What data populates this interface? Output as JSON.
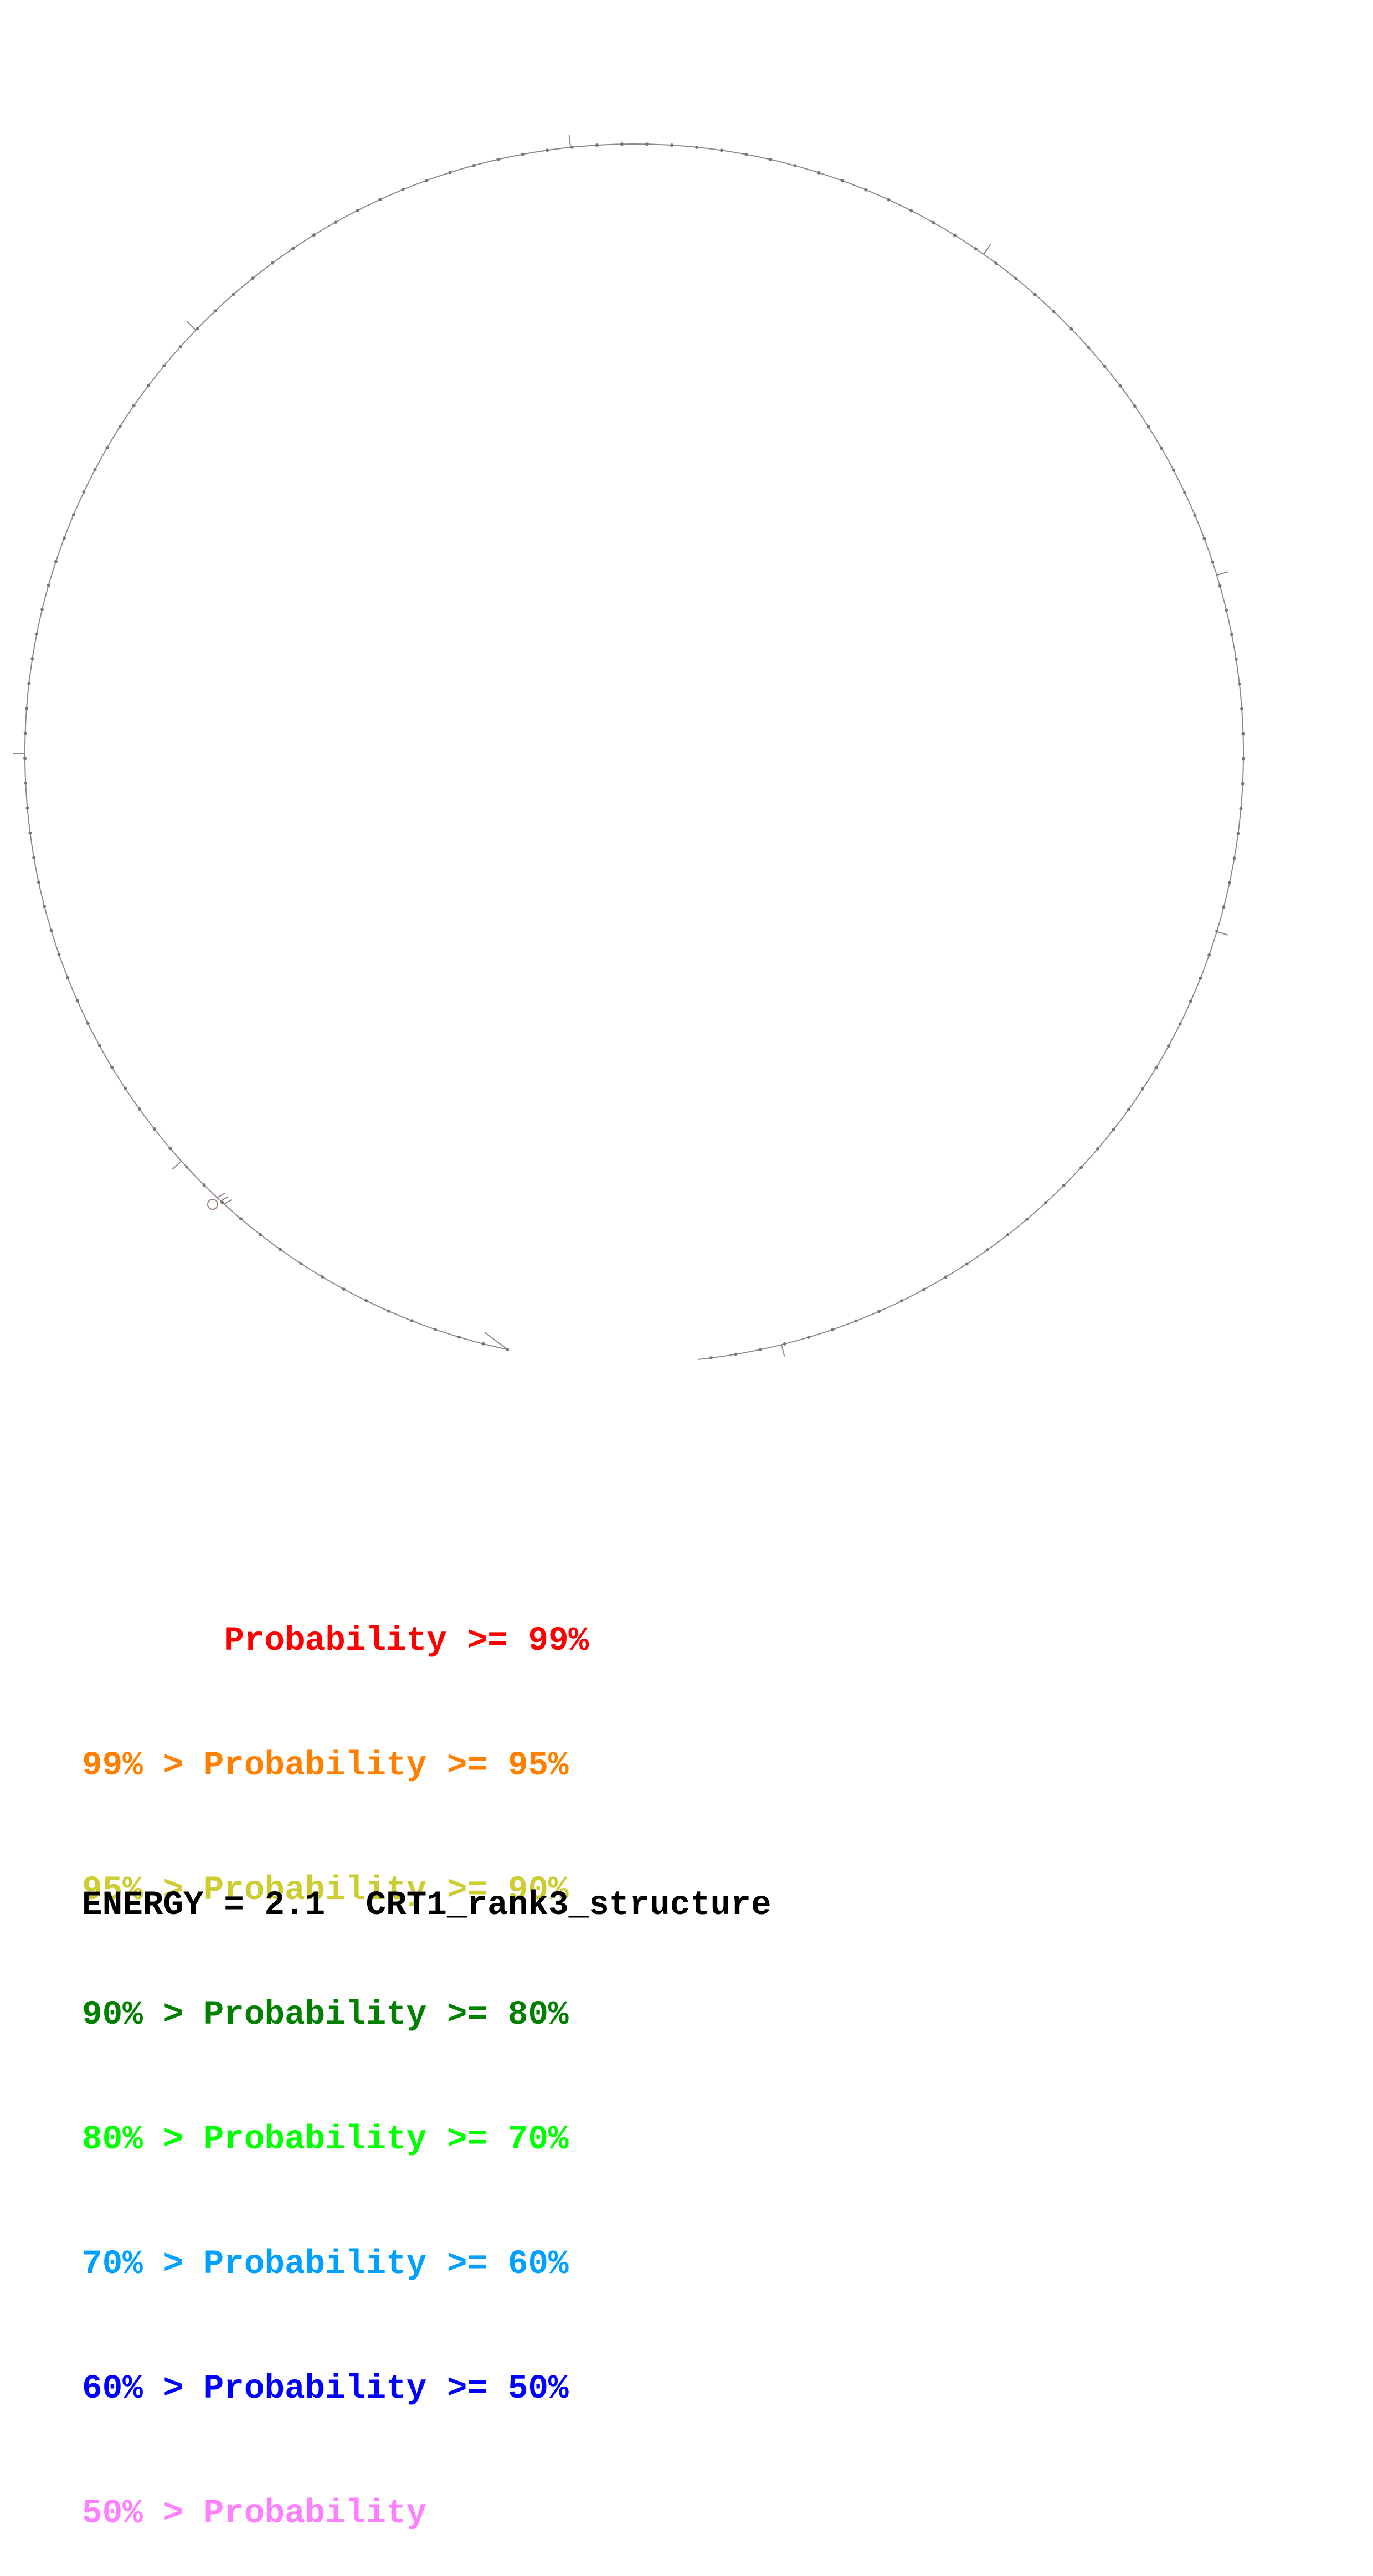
{
  "diagram": {
    "type": "RNA secondary structure (circular backbone plot)",
    "backbone_color": "#8a8a8a",
    "node_color": "#777777",
    "hairpin_color": "#a08078"
  },
  "legend": {
    "rows": [
      {
        "prefix": "       ",
        "text": "Probability >= 99%",
        "color": "#ff0000"
      },
      {
        "prefix": "99% > ",
        "text": "Probability >= 95%",
        "color": "#ff8000"
      },
      {
        "prefix": "95% > ",
        "text": "Probability >= 90%",
        "color": "#cccc33"
      },
      {
        "prefix": "90% > ",
        "text": "Probability >= 80%",
        "color": "#007f00"
      },
      {
        "prefix": "80% > ",
        "text": "Probability >= 70%",
        "color": "#00ff00"
      },
      {
        "prefix": "70% > ",
        "text": "Probability >= 60%",
        "color": "#00a0ff"
      },
      {
        "prefix": "60% > ",
        "text": "Probability >= 50%",
        "color": "#0000ff"
      },
      {
        "prefix": "50% > ",
        "text": "Probability",
        "color": "#ff80ff"
      }
    ]
  },
  "footer": {
    "energy_label": "ENERGY = 2.1",
    "structure_name": "CRT1_rank3_structure"
  }
}
